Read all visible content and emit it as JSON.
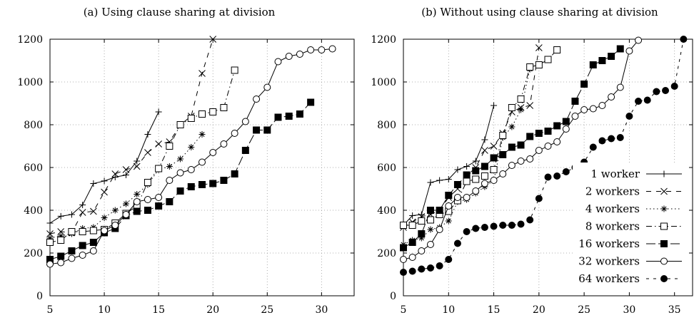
{
  "chart_data": [
    {
      "type": "line",
      "title": "(a) Using clause sharing at division",
      "xlabel": "",
      "ylabel": "",
      "xlim": [
        5,
        33
      ],
      "ylim": [
        0,
        1200
      ],
      "xticks": [
        5,
        10,
        15,
        20,
        25,
        30
      ],
      "yticks": [
        0,
        200,
        400,
        600,
        800,
        1000,
        1200
      ],
      "grid": true,
      "series": [
        {
          "name": "1 worker",
          "x": [
            5,
            6,
            7,
            8,
            9,
            10,
            11,
            12,
            13,
            14,
            15
          ],
          "y": [
            340,
            372,
            380,
            425,
            525,
            537,
            555,
            565,
            630,
            755,
            860
          ]
        },
        {
          "name": "2 workers",
          "x": [
            5,
            6,
            7,
            8,
            9,
            10,
            11,
            12,
            13,
            14,
            15,
            16,
            17,
            18,
            19,
            20
          ],
          "y": [
            290,
            300,
            295,
            390,
            395,
            485,
            570,
            590,
            605,
            670,
            710,
            720,
            800,
            840,
            1040,
            1200
          ]
        },
        {
          "name": "4 workers",
          "x": [
            5,
            6,
            7,
            8,
            9,
            10,
            11,
            12,
            13,
            14,
            15,
            16,
            17,
            18,
            19
          ],
          "y": [
            270,
            280,
            290,
            315,
            320,
            365,
            400,
            430,
            475,
            520,
            590,
            605,
            640,
            695,
            755
          ]
        },
        {
          "name": "8 workers",
          "x": [
            5,
            6,
            7,
            8,
            9,
            10,
            11,
            12,
            13,
            14,
            15,
            16,
            17,
            18,
            19,
            20,
            21,
            22
          ],
          "y": [
            250,
            260,
            300,
            300,
            305,
            310,
            340,
            385,
            420,
            530,
            595,
            700,
            800,
            830,
            850,
            860,
            880,
            1055
          ]
        },
        {
          "name": "16 workers",
          "x": [
            5,
            6,
            7,
            8,
            9,
            10,
            11,
            12,
            13,
            14,
            15,
            16,
            17,
            18,
            19,
            20,
            21,
            22,
            23,
            24,
            25,
            26,
            27,
            28,
            29
          ],
          "y": [
            170,
            185,
            210,
            235,
            250,
            295,
            315,
            375,
            395,
            400,
            420,
            440,
            490,
            510,
            520,
            525,
            540,
            570,
            680,
            775,
            775,
            835,
            840,
            850,
            905
          ]
        },
        {
          "name": "32 workers",
          "x": [
            5,
            6,
            7,
            8,
            9,
            10,
            11,
            12,
            13,
            14,
            15,
            16,
            17,
            18,
            19,
            20,
            21,
            22,
            23,
            24,
            25,
            26,
            27,
            28,
            29,
            30,
            31
          ],
          "y": [
            148,
            155,
            175,
            190,
            210,
            305,
            330,
            380,
            440,
            450,
            460,
            540,
            575,
            590,
            625,
            670,
            710,
            760,
            815,
            920,
            975,
            1095,
            1120,
            1130,
            1150,
            1150,
            1155
          ]
        }
      ]
    },
    {
      "type": "line",
      "title": "(b) Without using clause sharing at division",
      "xlabel": "",
      "ylabel": "",
      "xlim": [
        5,
        37
      ],
      "ylim": [
        0,
        1200
      ],
      "xticks": [
        5,
        10,
        15,
        20,
        25,
        30,
        35
      ],
      "yticks": [
        0,
        200,
        400,
        600,
        800,
        1000,
        1200
      ],
      "grid": true,
      "legend": {
        "position": "bottom-right",
        "entries": [
          "1 worker",
          "2 workers",
          "4 workers",
          "8 workers",
          "16 workers",
          "32 workers",
          "64 workers"
        ]
      },
      "series": [
        {
          "name": "1 worker",
          "x": [
            5,
            6,
            7,
            8,
            9,
            10,
            11,
            12,
            13,
            14,
            15
          ],
          "y": [
            330,
            375,
            380,
            530,
            540,
            545,
            590,
            605,
            630,
            730,
            890
          ]
        },
        {
          "name": "2 workers",
          "x": [
            5,
            6,
            7,
            8,
            9,
            10,
            11,
            12,
            13,
            14,
            15,
            16,
            17,
            18,
            19,
            20
          ],
          "y": [
            320,
            345,
            370,
            380,
            400,
            460,
            500,
            560,
            600,
            680,
            700,
            760,
            860,
            880,
            890,
            1160
          ]
        },
        {
          "name": "4 workers",
          "x": [
            5,
            6,
            7,
            8,
            9,
            10,
            11,
            12,
            13,
            14,
            15,
            16,
            17,
            18,
            19
          ],
          "y": [
            240,
            260,
            270,
            310,
            320,
            350,
            440,
            450,
            480,
            510,
            540,
            740,
            790,
            870,
            1060
          ]
        },
        {
          "name": "8 workers",
          "x": [
            5,
            6,
            7,
            8,
            9,
            10,
            11,
            12,
            13,
            14,
            15,
            16,
            17,
            18,
            19,
            20,
            21,
            22
          ],
          "y": [
            330,
            330,
            350,
            355,
            380,
            395,
            445,
            535,
            545,
            560,
            590,
            750,
            880,
            920,
            1070,
            1080,
            1105,
            1150
          ]
        },
        {
          "name": "16 workers",
          "x": [
            5,
            6,
            7,
            8,
            9,
            10,
            11,
            12,
            13,
            14,
            15,
            16,
            17,
            18,
            19,
            20,
            21,
            22,
            23,
            24,
            25,
            26,
            27,
            28,
            29
          ],
          "y": [
            225,
            250,
            290,
            400,
            400,
            470,
            520,
            565,
            585,
            605,
            645,
            660,
            695,
            705,
            745,
            760,
            770,
            795,
            815,
            910,
            990,
            1080,
            1100,
            1120,
            1155
          ]
        },
        {
          "name": "32 workers",
          "x": [
            5,
            6,
            7,
            8,
            9,
            10,
            11,
            12,
            13,
            14,
            15,
            16,
            17,
            18,
            19,
            20,
            21,
            22,
            23,
            24,
            25,
            26,
            27,
            28,
            29,
            30,
            31
          ],
          "y": [
            170,
            180,
            210,
            240,
            310,
            420,
            460,
            460,
            490,
            525,
            540,
            570,
            610,
            630,
            640,
            680,
            700,
            720,
            780,
            840,
            870,
            875,
            890,
            930,
            975,
            1145,
            1195
          ]
        },
        {
          "name": "64 workers",
          "x": [
            5,
            6,
            7,
            8,
            9,
            10,
            11,
            12,
            13,
            14,
            15,
            16,
            17,
            18,
            19,
            20,
            21,
            22,
            23,
            24,
            25,
            26,
            27,
            28,
            29,
            30,
            31,
            32,
            33,
            34,
            35,
            36
          ],
          "y": [
            110,
            115,
            125,
            130,
            140,
            170,
            245,
            300,
            315,
            320,
            325,
            330,
            330,
            335,
            355,
            455,
            555,
            560,
            580,
            600,
            625,
            695,
            725,
            735,
            740,
            840,
            910,
            915,
            955,
            960,
            980,
            1200
          ]
        }
      ]
    }
  ]
}
